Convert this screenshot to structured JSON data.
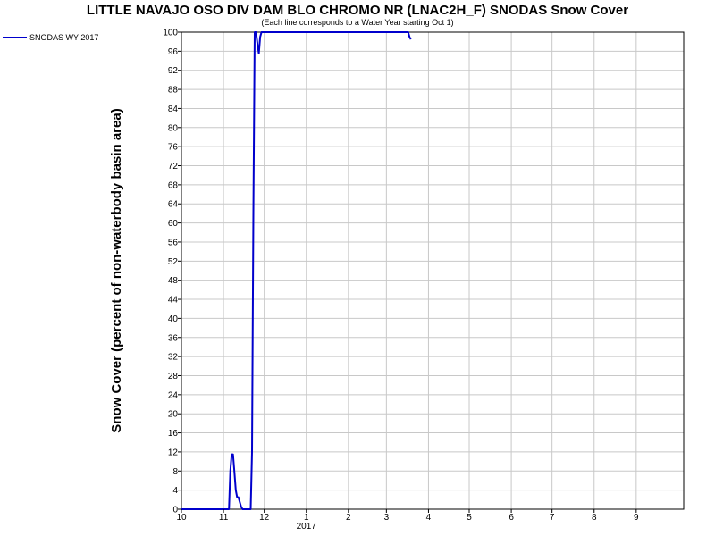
{
  "chart_data": {
    "type": "line",
    "title": "LITTLE NAVAJO OSO DIV DAM BLO CHROMO NR (LNAC2H_F) SNODAS Snow Cover",
    "subtitle": "(Each line corresponds to a Water Year starting Oct 1)",
    "ylabel": "Snow Cover (percent of non-waterbody basin area)",
    "xlabel": "",
    "ylim": [
      0,
      100
    ],
    "y_ticks": [
      0,
      4,
      8,
      12,
      16,
      20,
      24,
      28,
      32,
      36,
      40,
      44,
      48,
      52,
      56,
      60,
      64,
      68,
      72,
      76,
      80,
      84,
      88,
      92,
      96,
      100
    ],
    "x_ticks": [
      {
        "label": "10",
        "date": "2016-10-01"
      },
      {
        "label": "11",
        "date": "2016-11-01"
      },
      {
        "label": "12",
        "date": "2016-12-01"
      },
      {
        "label": "1",
        "date": "2017-01-01"
      },
      {
        "label": "2",
        "date": "2017-02-01"
      },
      {
        "label": "3",
        "date": "2017-03-01"
      },
      {
        "label": "4",
        "date": "2017-04-01"
      },
      {
        "label": "5",
        "date": "2017-05-01"
      },
      {
        "label": "6",
        "date": "2017-06-01"
      },
      {
        "label": "7",
        "date": "2017-07-01"
      },
      {
        "label": "8",
        "date": "2017-08-01"
      },
      {
        "label": "9",
        "date": "2017-09-01"
      }
    ],
    "x_year_label": "2017",
    "xlim": [
      "2016-10-01",
      "2017-10-06"
    ],
    "grid": true,
    "legend_position": "top-left-outside",
    "series": [
      {
        "name": "SNODAS WY 2017",
        "color": "#0000cc",
        "points": [
          {
            "x": "2016-10-01",
            "y": 0
          },
          {
            "x": "2016-10-15",
            "y": 0
          },
          {
            "x": "2016-11-01",
            "y": 0
          },
          {
            "x": "2016-11-05",
            "y": 0
          },
          {
            "x": "2016-11-06",
            "y": 8
          },
          {
            "x": "2016-11-07",
            "y": 11.5
          },
          {
            "x": "2016-11-08",
            "y": 11.5
          },
          {
            "x": "2016-11-09",
            "y": 8
          },
          {
            "x": "2016-11-10",
            "y": 4
          },
          {
            "x": "2016-11-11",
            "y": 2.5
          },
          {
            "x": "2016-11-12",
            "y": 2.5
          },
          {
            "x": "2016-11-13",
            "y": 1.5
          },
          {
            "x": "2016-11-14",
            "y": 0.5
          },
          {
            "x": "2016-11-15",
            "y": 0
          },
          {
            "x": "2016-11-21",
            "y": 0
          },
          {
            "x": "2016-11-22",
            "y": 12
          },
          {
            "x": "2016-11-23",
            "y": 62
          },
          {
            "x": "2016-11-24",
            "y": 100
          },
          {
            "x": "2016-11-25",
            "y": 100
          },
          {
            "x": "2016-11-26",
            "y": 97.5
          },
          {
            "x": "2016-11-27",
            "y": 95.5
          },
          {
            "x": "2016-11-28",
            "y": 99
          },
          {
            "x": "2016-11-29",
            "y": 100
          },
          {
            "x": "2017-03-01",
            "y": 100
          },
          {
            "x": "2017-03-17",
            "y": 100
          },
          {
            "x": "2017-03-18",
            "y": 99
          },
          {
            "x": "2017-03-19",
            "y": 98.5
          }
        ]
      }
    ]
  }
}
